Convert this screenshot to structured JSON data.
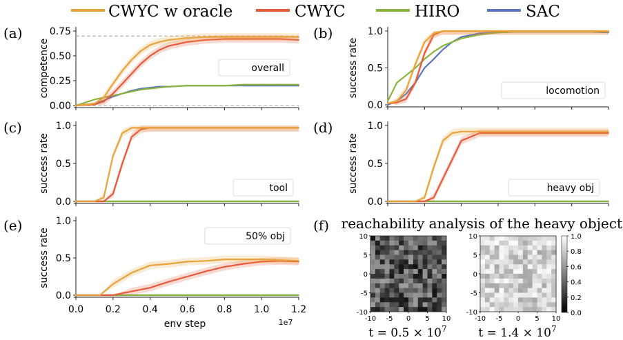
{
  "legend": [
    {
      "label": "CWYC w oracle",
      "color": "#e8a33a"
    },
    {
      "label": "CWYC",
      "color": "#e8593a"
    },
    {
      "label": "HIRO",
      "color": "#8ab43c"
    },
    {
      "label": "SAC",
      "color": "#5a76c0"
    }
  ],
  "colors": {
    "oracle": "#e8a33a",
    "cwyc": "#e8593a",
    "hiro": "#8ab43c",
    "sac": "#5a76c0"
  },
  "x_axis": {
    "label": "env step",
    "exponent": "1e7",
    "ticks": [
      "0.0",
      "0.2",
      "0.4",
      "0.6",
      "0.8",
      "1.0",
      "1.2"
    ]
  },
  "chart_data": [
    {
      "panel": "(a)",
      "type": "line",
      "ylabel": "competence",
      "annotation": "overall",
      "ylim": [
        0,
        0.75
      ],
      "yticks": [
        "0.00",
        "0.25",
        "0.50",
        "0.75"
      ],
      "reference_lines": [
        0.7,
        0.0
      ],
      "x": [
        0.0,
        0.1,
        0.15,
        0.2,
        0.25,
        0.3,
        0.35,
        0.4,
        0.45,
        0.5,
        0.6,
        0.7,
        0.8,
        0.9,
        1.0,
        1.1,
        1.2
      ],
      "series": [
        {
          "name": "CWYC w oracle",
          "values": [
            0,
            0.02,
            0.08,
            0.22,
            0.35,
            0.46,
            0.55,
            0.61,
            0.64,
            0.66,
            0.68,
            0.69,
            0.69,
            0.69,
            0.69,
            0.69,
            0.69
          ]
        },
        {
          "name": "CWYC",
          "values": [
            0,
            0.01,
            0.04,
            0.12,
            0.22,
            0.32,
            0.42,
            0.5,
            0.56,
            0.6,
            0.64,
            0.66,
            0.67,
            0.67,
            0.67,
            0.67,
            0.66
          ]
        },
        {
          "name": "HIRO",
          "values": [
            0,
            0.06,
            0.08,
            0.1,
            0.12,
            0.14,
            0.16,
            0.17,
            0.18,
            0.19,
            0.2,
            0.2,
            0.2,
            0.21,
            0.21,
            0.21,
            0.21
          ]
        },
        {
          "name": "SAC",
          "values": [
            0,
            0.02,
            0.05,
            0.09,
            0.12,
            0.15,
            0.17,
            0.18,
            0.19,
            0.19,
            0.2,
            0.2,
            0.2,
            0.2,
            0.2,
            0.2,
            0.2
          ]
        }
      ]
    },
    {
      "panel": "(b)",
      "type": "line",
      "ylabel": "success rate",
      "annotation": "locomotion",
      "ylim": [
        0,
        1.0
      ],
      "yticks": [
        "0.0",
        "0.5",
        "1.0"
      ],
      "x": [
        0.0,
        0.05,
        0.1,
        0.15,
        0.2,
        0.25,
        0.3,
        0.35,
        0.4,
        0.5,
        0.6,
        0.7,
        0.8,
        0.9,
        1.0,
        1.1,
        1.2
      ],
      "series": [
        {
          "name": "CWYC w oracle",
          "values": [
            0.02,
            0.05,
            0.2,
            0.55,
            0.85,
            0.97,
            1.0,
            1.0,
            1.0,
            1.0,
            1.0,
            1.0,
            1.0,
            1.0,
            1.0,
            1.0,
            1.0
          ]
        },
        {
          "name": "CWYC",
          "values": [
            0.02,
            0.03,
            0.08,
            0.3,
            0.7,
            0.95,
            1.0,
            1.0,
            1.0,
            1.0,
            1.0,
            1.0,
            1.0,
            1.0,
            1.0,
            1.0,
            1.0
          ]
        },
        {
          "name": "HIRO",
          "values": [
            0.05,
            0.3,
            0.4,
            0.5,
            0.62,
            0.72,
            0.8,
            0.85,
            0.9,
            0.95,
            0.98,
            0.99,
            0.99,
            0.99,
            0.99,
            0.99,
            0.99
          ]
        },
        {
          "name": "SAC",
          "values": [
            0.0,
            0.05,
            0.15,
            0.3,
            0.5,
            0.62,
            0.75,
            0.85,
            0.92,
            0.97,
            0.98,
            0.99,
            0.99,
            0.99,
            0.99,
            0.99,
            0.98
          ]
        }
      ]
    },
    {
      "panel": "(c)",
      "type": "line",
      "ylabel": "success rate",
      "annotation": "tool",
      "ylim": [
        0,
        1.0
      ],
      "yticks": [
        "0.0",
        "0.5",
        "1.0"
      ],
      "x": [
        0.0,
        0.1,
        0.15,
        0.2,
        0.25,
        0.3,
        0.35,
        0.4,
        0.5,
        0.6,
        0.7,
        0.8,
        0.9,
        1.0,
        1.1,
        1.2
      ],
      "series": [
        {
          "name": "CWYC w oracle",
          "values": [
            0,
            0,
            0.05,
            0.6,
            0.9,
            0.97,
            0.97,
            0.97,
            0.97,
            0.97,
            0.97,
            0.97,
            0.97,
            0.97,
            0.97,
            0.97
          ]
        },
        {
          "name": "CWYC",
          "values": [
            0,
            0,
            0,
            0.1,
            0.5,
            0.85,
            0.95,
            0.97,
            0.97,
            0.97,
            0.97,
            0.97,
            0.97,
            0.97,
            0.97,
            0.97
          ]
        },
        {
          "name": "HIRO",
          "values": [
            0,
            0,
            0,
            0,
            0,
            0,
            0,
            0,
            0,
            0,
            0,
            0,
            0,
            0,
            0,
            0
          ]
        },
        {
          "name": "SAC",
          "values": [
            0,
            0,
            0,
            0,
            0,
            0,
            0,
            0,
            0,
            0,
            0,
            0,
            0,
            0,
            0,
            0
          ]
        }
      ]
    },
    {
      "panel": "(d)",
      "type": "line",
      "ylabel": "success rate",
      "annotation": "heavy obj",
      "ylim": [
        0,
        1.0
      ],
      "yticks": [
        "0.0",
        "0.5",
        "1.0"
      ],
      "x": [
        0.0,
        0.15,
        0.2,
        0.25,
        0.3,
        0.35,
        0.4,
        0.5,
        0.6,
        0.7,
        0.8,
        0.9,
        1.0,
        1.1,
        1.2
      ],
      "series": [
        {
          "name": "CWYC w oracle",
          "values": [
            0,
            0,
            0.05,
            0.45,
            0.8,
            0.9,
            0.92,
            0.92,
            0.92,
            0.92,
            0.92,
            0.92,
            0.92,
            0.92,
            0.92
          ]
        },
        {
          "name": "CWYC",
          "values": [
            0,
            0,
            0,
            0.05,
            0.3,
            0.55,
            0.8,
            0.9,
            0.9,
            0.9,
            0.9,
            0.9,
            0.9,
            0.9,
            0.9
          ]
        },
        {
          "name": "HIRO",
          "values": [
            0,
            0,
            0,
            0,
            0,
            0,
            0,
            0,
            0,
            0,
            0,
            0,
            0,
            0,
            0
          ]
        },
        {
          "name": "SAC",
          "values": [
            0,
            0,
            0,
            0,
            0,
            0,
            0,
            0,
            0,
            0,
            0,
            0,
            0,
            0,
            0
          ]
        }
      ]
    },
    {
      "panel": "(e)",
      "type": "line",
      "ylabel": "success rate",
      "annotation": "50% obj",
      "ylim": [
        0,
        1.0
      ],
      "yticks": [
        "0.0",
        "0.5",
        "1.0"
      ],
      "x": [
        0.0,
        0.13,
        0.2,
        0.3,
        0.4,
        0.5,
        0.6,
        0.7,
        0.8,
        0.9,
        1.0,
        1.1,
        1.2
      ],
      "series": [
        {
          "name": "CWYC w oracle",
          "values": [
            0,
            0,
            0.15,
            0.3,
            0.4,
            0.42,
            0.45,
            0.46,
            0.48,
            0.48,
            0.48,
            0.47,
            0.46
          ]
        },
        {
          "name": "CWYC",
          "values": [
            0,
            0,
            0,
            0.05,
            0.1,
            0.18,
            0.25,
            0.32,
            0.38,
            0.42,
            0.45,
            0.46,
            0.45
          ]
        },
        {
          "name": "HIRO",
          "values": [
            0,
            0,
            0,
            0,
            0,
            0,
            0,
            0,
            0,
            0,
            0,
            0,
            0
          ]
        },
        {
          "name": "SAC",
          "values": [
            0,
            0,
            0,
            0,
            0,
            0,
            0,
            0,
            0,
            0,
            0,
            0,
            0
          ]
        }
      ]
    },
    {
      "panel": "(f)",
      "type": "heatmap",
      "title": "reachability analysis of the heavy object",
      "xlim": [
        -10,
        10
      ],
      "ylim": [
        -10,
        10
      ],
      "ticks": [
        "-10",
        "-5",
        "0",
        "5",
        "10"
      ],
      "colorbar_ticks": [
        "0.0",
        "0.2",
        "0.4",
        "0.6",
        "0.8",
        "1.0"
      ],
      "maps": [
        {
          "caption": "t = 0.5 × 10",
          "caption_exp": "7",
          "mean_value": 0.35
        },
        {
          "caption": "t = 1.4 × 10",
          "caption_exp": "7",
          "mean_value": 0.82
        }
      ]
    }
  ]
}
